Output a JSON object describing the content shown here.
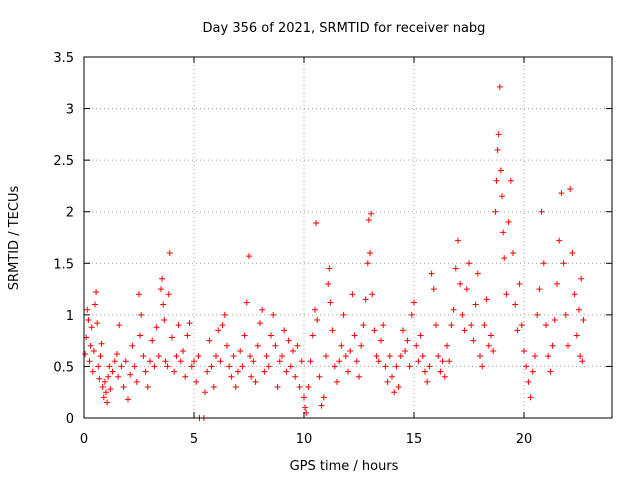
{
  "chart_data": {
    "type": "scatter",
    "title": "Day 356 of 2021, SRMTID for receiver nabg",
    "xlabel": "GPS time / hours",
    "ylabel": "SRMTID / TECUs",
    "xlim": [
      0,
      24
    ],
    "ylim": [
      0,
      3.5
    ],
    "xticks": [
      0,
      5,
      10,
      15,
      20
    ],
    "xtick_labels": [
      "0",
      "5",
      "10",
      "15",
      "20"
    ],
    "yticks": [
      0,
      0.5,
      1,
      1.5,
      2,
      2.5,
      3,
      3.5
    ],
    "ytick_labels": [
      "0",
      "0.5",
      "1",
      "1.5",
      "2",
      "2.5",
      "3",
      "3.5"
    ],
    "grid": true,
    "marker": "plus",
    "color": "#ff0000",
    "series": [
      {
        "name": "SRMTID",
        "points": [
          [
            0.05,
            0.62
          ],
          [
            0.1,
            0.78
          ],
          [
            0.15,
            1.05
          ],
          [
            0.2,
            0.95
          ],
          [
            0.25,
            0.55
          ],
          [
            0.3,
            0.7
          ],
          [
            0.35,
            0.88
          ],
          [
            0.4,
            0.45
          ],
          [
            0.45,
            0.65
          ],
          [
            0.5,
            1.1
          ],
          [
            0.55,
            1.22
          ],
          [
            0.6,
            0.92
          ],
          [
            0.65,
            0.5
          ],
          [
            0.7,
            0.38
          ],
          [
            0.75,
            0.6
          ],
          [
            0.8,
            0.72
          ],
          [
            0.85,
            0.3
          ],
          [
            0.9,
            0.2
          ],
          [
            0.95,
            0.35
          ],
          [
            1.0,
            0.25
          ],
          [
            1.05,
            0.15
          ],
          [
            1.1,
            0.4
          ],
          [
            1.15,
            0.5
          ],
          [
            1.2,
            0.28
          ],
          [
            1.3,
            0.45
          ],
          [
            1.4,
            0.55
          ],
          [
            1.5,
            0.62
          ],
          [
            1.55,
            0.4
          ],
          [
            1.6,
            0.9
          ],
          [
            1.7,
            0.5
          ],
          [
            1.8,
            0.3
          ],
          [
            1.9,
            0.55
          ],
          [
            2.0,
            0.18
          ],
          [
            2.1,
            0.42
          ],
          [
            2.2,
            0.7
          ],
          [
            2.3,
            0.5
          ],
          [
            2.4,
            0.35
          ],
          [
            2.5,
            1.2
          ],
          [
            2.55,
            0.8
          ],
          [
            2.6,
            1.0
          ],
          [
            2.7,
            0.6
          ],
          [
            2.8,
            0.45
          ],
          [
            2.9,
            0.3
          ],
          [
            3.0,
            0.55
          ],
          [
            3.1,
            0.75
          ],
          [
            3.2,
            0.5
          ],
          [
            3.3,
            0.88
          ],
          [
            3.4,
            0.6
          ],
          [
            3.5,
            1.25
          ],
          [
            3.55,
            1.35
          ],
          [
            3.6,
            1.1
          ],
          [
            3.65,
            0.95
          ],
          [
            3.7,
            0.55
          ],
          [
            3.8,
            0.5
          ],
          [
            3.85,
            1.2
          ],
          [
            3.9,
            1.6
          ],
          [
            4.0,
            0.78
          ],
          [
            4.1,
            0.45
          ],
          [
            4.2,
            0.6
          ],
          [
            4.3,
            0.9
          ],
          [
            4.4,
            0.55
          ],
          [
            4.5,
            0.65
          ],
          [
            4.6,
            0.4
          ],
          [
            4.7,
            0.8
          ],
          [
            4.8,
            0.92
          ],
          [
            4.9,
            0.5
          ],
          [
            5.0,
            0.55
          ],
          [
            5.1,
            0.35
          ],
          [
            5.2,
            0.6
          ],
          [
            5.25,
            0.0
          ],
          [
            5.45,
            0.0
          ],
          [
            5.5,
            0.25
          ],
          [
            5.6,
            0.45
          ],
          [
            5.7,
            0.75
          ],
          [
            5.8,
            0.5
          ],
          [
            5.9,
            0.3
          ],
          [
            6.0,
            0.6
          ],
          [
            6.1,
            0.85
          ],
          [
            6.2,
            0.55
          ],
          [
            6.3,
            0.9
          ],
          [
            6.4,
            1.0
          ],
          [
            6.5,
            0.7
          ],
          [
            6.6,
            0.5
          ],
          [
            6.7,
            0.4
          ],
          [
            6.8,
            0.6
          ],
          [
            6.9,
            0.3
          ],
          [
            7.0,
            0.45
          ],
          [
            7.1,
            0.65
          ],
          [
            7.2,
            0.5
          ],
          [
            7.3,
            0.8
          ],
          [
            7.4,
            1.12
          ],
          [
            7.5,
            1.57
          ],
          [
            7.55,
            0.6
          ],
          [
            7.6,
            0.4
          ],
          [
            7.7,
            0.55
          ],
          [
            7.8,
            0.35
          ],
          [
            7.9,
            0.7
          ],
          [
            8.0,
            0.92
          ],
          [
            8.1,
            1.05
          ],
          [
            8.2,
            0.45
          ],
          [
            8.3,
            0.6
          ],
          [
            8.4,
            0.5
          ],
          [
            8.5,
            0.8
          ],
          [
            8.6,
            1.0
          ],
          [
            8.7,
            0.7
          ],
          [
            8.8,
            0.3
          ],
          [
            8.9,
            0.55
          ],
          [
            9.0,
            0.6
          ],
          [
            9.1,
            0.85
          ],
          [
            9.2,
            0.45
          ],
          [
            9.3,
            0.75
          ],
          [
            9.4,
            0.5
          ],
          [
            9.5,
            0.65
          ],
          [
            9.6,
            0.4
          ],
          [
            9.7,
            0.7
          ],
          [
            9.8,
            0.3
          ],
          [
            9.9,
            0.55
          ],
          [
            10.0,
            0.2
          ],
          [
            10.05,
            0.1
          ],
          [
            10.1,
            0.05
          ],
          [
            10.2,
            0.3
          ],
          [
            10.3,
            0.55
          ],
          [
            10.4,
            0.8
          ],
          [
            10.5,
            1.05
          ],
          [
            10.55,
            1.89
          ],
          [
            10.6,
            0.95
          ],
          [
            10.7,
            0.4
          ],
          [
            10.8,
            0.12
          ],
          [
            10.9,
            0.2
          ],
          [
            11.0,
            0.6
          ],
          [
            11.1,
            1.3
          ],
          [
            11.15,
            1.45
          ],
          [
            11.2,
            1.12
          ],
          [
            11.3,
            0.85
          ],
          [
            11.4,
            0.5
          ],
          [
            11.5,
            0.35
          ],
          [
            11.6,
            0.55
          ],
          [
            11.7,
            0.7
          ],
          [
            11.8,
            1.0
          ],
          [
            11.9,
            0.6
          ],
          [
            12.0,
            0.45
          ],
          [
            12.1,
            0.65
          ],
          [
            12.2,
            1.2
          ],
          [
            12.3,
            0.8
          ],
          [
            12.4,
            0.55
          ],
          [
            12.5,
            0.4
          ],
          [
            12.6,
            0.7
          ],
          [
            12.7,
            0.9
          ],
          [
            12.8,
            1.15
          ],
          [
            12.9,
            1.5
          ],
          [
            12.95,
            1.92
          ],
          [
            13.0,
            1.6
          ],
          [
            13.05,
            1.98
          ],
          [
            13.1,
            1.2
          ],
          [
            13.2,
            0.85
          ],
          [
            13.3,
            0.6
          ],
          [
            13.4,
            0.55
          ],
          [
            13.5,
            0.75
          ],
          [
            13.6,
            0.9
          ],
          [
            13.7,
            0.5
          ],
          [
            13.8,
            0.35
          ],
          [
            13.9,
            0.6
          ],
          [
            14.0,
            0.4
          ],
          [
            14.1,
            0.25
          ],
          [
            14.2,
            0.5
          ],
          [
            14.3,
            0.3
          ],
          [
            14.4,
            0.6
          ],
          [
            14.5,
            0.85
          ],
          [
            14.6,
            0.65
          ],
          [
            14.7,
            0.75
          ],
          [
            14.8,
            0.5
          ],
          [
            14.9,
            1.0
          ],
          [
            15.0,
            1.12
          ],
          [
            15.1,
            0.7
          ],
          [
            15.2,
            0.55
          ],
          [
            15.3,
            0.8
          ],
          [
            15.4,
            0.6
          ],
          [
            15.5,
            0.45
          ],
          [
            15.6,
            0.35
          ],
          [
            15.7,
            0.5
          ],
          [
            15.8,
            1.4
          ],
          [
            15.9,
            1.25
          ],
          [
            16.0,
            0.9
          ],
          [
            16.1,
            0.6
          ],
          [
            16.2,
            0.45
          ],
          [
            16.3,
            0.55
          ],
          [
            16.4,
            0.4
          ],
          [
            16.5,
            0.7
          ],
          [
            16.6,
            0.55
          ],
          [
            16.7,
            0.9
          ],
          [
            16.8,
            1.05
          ],
          [
            16.9,
            1.45
          ],
          [
            17.0,
            1.72
          ],
          [
            17.1,
            1.3
          ],
          [
            17.2,
            1.0
          ],
          [
            17.3,
            0.85
          ],
          [
            17.4,
            1.25
          ],
          [
            17.5,
            1.5
          ],
          [
            17.6,
            0.9
          ],
          [
            17.7,
            0.75
          ],
          [
            17.8,
            1.1
          ],
          [
            17.9,
            1.4
          ],
          [
            18.0,
            0.6
          ],
          [
            18.1,
            0.5
          ],
          [
            18.2,
            0.9
          ],
          [
            18.3,
            1.15
          ],
          [
            18.4,
            0.7
          ],
          [
            18.5,
            0.8
          ],
          [
            18.6,
            0.65
          ],
          [
            18.7,
            2.0
          ],
          [
            18.75,
            2.3
          ],
          [
            18.8,
            2.6
          ],
          [
            18.85,
            2.75
          ],
          [
            18.9,
            3.21
          ],
          [
            18.95,
            2.4
          ],
          [
            19.0,
            2.15
          ],
          [
            19.05,
            1.8
          ],
          [
            19.1,
            1.55
          ],
          [
            19.2,
            1.2
          ],
          [
            19.3,
            1.9
          ],
          [
            19.4,
            2.3
          ],
          [
            19.5,
            1.6
          ],
          [
            19.6,
            1.1
          ],
          [
            19.7,
            0.85
          ],
          [
            19.8,
            1.3
          ],
          [
            19.9,
            0.9
          ],
          [
            20.0,
            0.65
          ],
          [
            20.1,
            0.5
          ],
          [
            20.2,
            0.35
          ],
          [
            20.3,
            0.2
          ],
          [
            20.4,
            0.45
          ],
          [
            20.5,
            0.6
          ],
          [
            20.6,
            1.0
          ],
          [
            20.7,
            1.25
          ],
          [
            20.8,
            2.0
          ],
          [
            20.9,
            1.5
          ],
          [
            21.0,
            0.9
          ],
          [
            21.1,
            0.6
          ],
          [
            21.2,
            0.45
          ],
          [
            21.3,
            0.7
          ],
          [
            21.4,
            0.95
          ],
          [
            21.5,
            1.3
          ],
          [
            21.6,
            1.72
          ],
          [
            21.7,
            2.18
          ],
          [
            21.8,
            1.5
          ],
          [
            21.9,
            1.0
          ],
          [
            22.0,
            0.7
          ],
          [
            22.1,
            2.22
          ],
          [
            22.2,
            1.6
          ],
          [
            22.3,
            1.2
          ],
          [
            22.4,
            0.8
          ],
          [
            22.5,
            1.05
          ],
          [
            22.55,
            0.6
          ],
          [
            22.6,
            1.35
          ],
          [
            22.65,
            0.55
          ],
          [
            22.7,
            0.95
          ]
        ]
      }
    ]
  }
}
